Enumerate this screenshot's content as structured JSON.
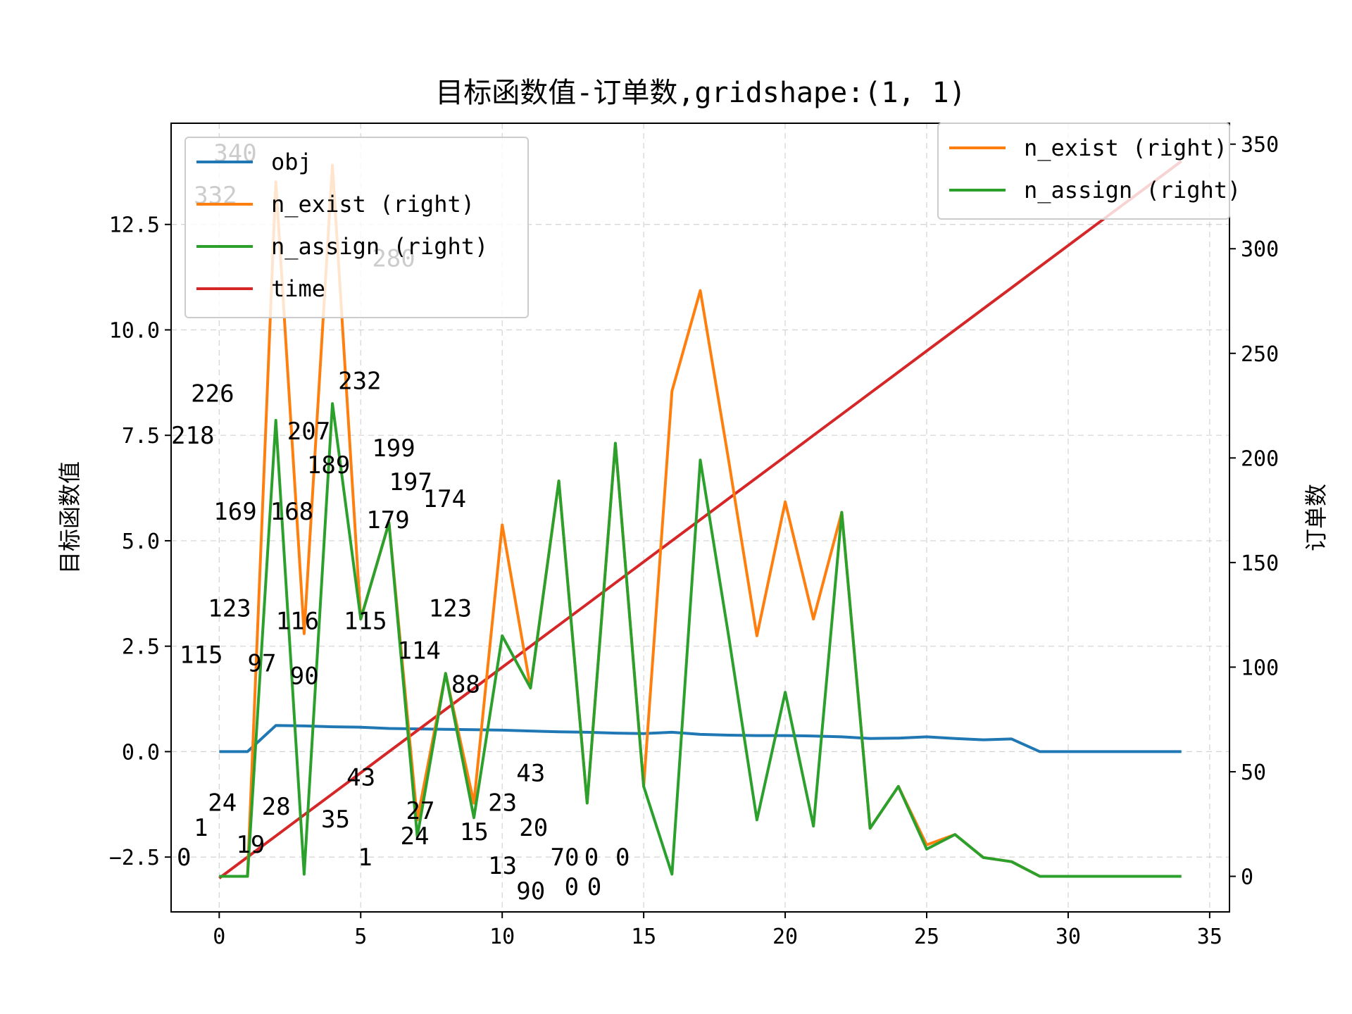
{
  "chart_data": {
    "type": "line",
    "title": "目标函数值-订单数,gridshape:(1, 1)",
    "xlabel": "",
    "ylabel_left": "目标函数值",
    "ylabel_right": "订单数",
    "xlim": [
      -1.7,
      35.7
    ],
    "ylim_left": [
      -3.8,
      14.9
    ],
    "ylim_right": [
      -17,
      360
    ],
    "xticks": [
      0,
      5,
      10,
      15,
      20,
      25,
      30,
      35
    ],
    "yticks_left": [
      -2.5,
      0.0,
      2.5,
      5.0,
      7.5,
      10.0,
      12.5
    ],
    "ytick_labels_left": [
      "−2.5",
      "0.0",
      "2.5",
      "5.0",
      "7.5",
      "10.0",
      "12.5"
    ],
    "yticks_right": [
      0,
      50,
      100,
      150,
      200,
      250,
      300,
      350
    ],
    "grid": true,
    "legend_left_placement": "upper-left",
    "legend_right_placement": "upper-right",
    "legend_left": [
      "obj",
      "n_exist (right)",
      "n_assign (right)",
      "time"
    ],
    "legend_right": [
      "n_exist (right)",
      "n_assign (right)"
    ],
    "colors": {
      "obj": "#1f77b4",
      "n_exist": "#ff7f0e",
      "n_assign": "#2ca02c",
      "time": "#d62728"
    },
    "x": [
      0,
      1,
      2,
      3,
      4,
      5,
      6,
      7,
      8,
      9,
      10,
      11,
      12,
      13,
      14,
      15,
      16,
      17,
      18,
      19,
      20,
      21,
      22,
      23,
      24,
      25,
      26,
      27,
      28,
      29,
      30,
      31,
      32,
      33,
      34
    ],
    "series": [
      {
        "name": "obj",
        "axis": "left",
        "values": [
          0.0,
          0.0,
          0.62,
          0.61,
          0.59,
          0.58,
          0.55,
          0.54,
          0.53,
          0.52,
          0.51,
          0.49,
          0.47,
          0.46,
          0.44,
          0.43,
          0.46,
          0.41,
          0.39,
          0.38,
          0.38,
          0.37,
          0.35,
          0.31,
          0.32,
          0.35,
          0.31,
          0.28,
          0.3,
          0.0,
          0.0,
          0.0,
          0.0,
          0.0,
          0.0
        ]
      },
      {
        "name": "n_exist (right)",
        "axis": "right",
        "values": [
          0,
          0,
          332,
          116,
          340,
          123,
          169,
          27,
          97,
          35,
          168,
          90,
          189,
          35,
          207,
          43,
          232,
          280,
          199,
          115,
          179,
          123,
          174,
          23,
          43,
          15,
          20,
          9,
          7,
          0,
          0,
          0,
          0,
          0,
          0
        ]
      },
      {
        "name": "n_assign (right)",
        "axis": "right",
        "values": [
          0,
          0,
          218,
          1,
          226,
          123,
          169,
          19,
          97,
          28,
          115,
          90,
          189,
          35,
          207,
          43,
          1,
          199,
          115,
          27,
          88,
          24,
          174,
          23,
          43,
          13,
          20,
          9,
          7,
          0,
          0,
          0,
          0,
          0,
          0
        ]
      },
      {
        "name": "time",
        "axis": "left",
        "values": [
          -3.0,
          -2.5,
          -2.0,
          -1.5,
          -1.0,
          -0.5,
          0.0,
          0.5,
          1.0,
          1.5,
          2.0,
          2.5,
          3.0,
          3.5,
          4.0,
          4.5,
          5.0,
          5.5,
          6.0,
          6.5,
          7.0,
          7.5,
          8.0,
          8.5,
          9.0,
          9.5,
          10.0,
          10.5,
          11.0,
          11.5,
          12.0,
          12.5,
          13.0,
          13.5,
          14.0
        ]
      }
    ],
    "annotations": [
      {
        "text": "340",
        "x": -0.2,
        "y": 14.0
      },
      {
        "text": "332",
        "x": -0.9,
        "y": 13.0
      },
      {
        "text": "280",
        "x": 5.4,
        "y": 11.5
      },
      {
        "text": "226",
        "x": -1.0,
        "y": 8.3
      },
      {
        "text": "232",
        "x": 4.2,
        "y": 8.6
      },
      {
        "text": "218",
        "x": -1.7,
        "y": 7.3
      },
      {
        "text": "207",
        "x": 2.4,
        "y": 7.4
      },
      {
        "text": "199",
        "x": 5.4,
        "y": 7.0
      },
      {
        "text": "189",
        "x": 3.1,
        "y": 6.6
      },
      {
        "text": "197",
        "x": 6.0,
        "y": 6.2
      },
      {
        "text": "174",
        "x": 7.2,
        "y": 5.8
      },
      {
        "text": "169",
        "x": -0.2,
        "y": 5.5
      },
      {
        "text": "168",
        "x": 1.8,
        "y": 5.5
      },
      {
        "text": "179",
        "x": 5.2,
        "y": 5.3
      },
      {
        "text": "123",
        "x": -0.4,
        "y": 3.2
      },
      {
        "text": "116",
        "x": 2.0,
        "y": 2.9
      },
      {
        "text": "115",
        "x": 4.4,
        "y": 2.9
      },
      {
        "text": "123",
        "x": 7.4,
        "y": 3.2
      },
      {
        "text": "115",
        "x": -1.4,
        "y": 2.1
      },
      {
        "text": "97",
        "x": 1.0,
        "y": 1.9
      },
      {
        "text": "114",
        "x": 6.3,
        "y": 2.2
      },
      {
        "text": "90",
        "x": 2.5,
        "y": 1.6
      },
      {
        "text": "88",
        "x": 8.2,
        "y": 1.4
      },
      {
        "text": "43",
        "x": 4.5,
        "y": -0.8
      },
      {
        "text": "43",
        "x": 10.5,
        "y": -0.7
      },
      {
        "text": "24",
        "x": -0.4,
        "y": -1.4
      },
      {
        "text": "28",
        "x": 1.5,
        "y": -1.5
      },
      {
        "text": "27",
        "x": 6.6,
        "y": -1.6
      },
      {
        "text": "23",
        "x": 9.5,
        "y": -1.4
      },
      {
        "text": "35",
        "x": 3.6,
        "y": -1.8
      },
      {
        "text": "1",
        "x": -0.9,
        "y": -2.0
      },
      {
        "text": "20",
        "x": 10.6,
        "y": -2.0
      },
      {
        "text": "24",
        "x": 6.4,
        "y": -2.2
      },
      {
        "text": "15",
        "x": 8.5,
        "y": -2.1
      },
      {
        "text": "19",
        "x": 0.6,
        "y": -2.4
      },
      {
        "text": "0",
        "x": -1.5,
        "y": -2.7
      },
      {
        "text": "1",
        "x": 4.9,
        "y": -2.7
      },
      {
        "text": "70",
        "x": 11.7,
        "y": -2.7
      },
      {
        "text": "0",
        "x": 12.9,
        "y": -2.7
      },
      {
        "text": "0",
        "x": 14.0,
        "y": -2.7
      },
      {
        "text": "13",
        "x": 9.5,
        "y": -2.9
      },
      {
        "text": "90",
        "x": 10.5,
        "y": -3.5
      },
      {
        "text": "0",
        "x": 12.2,
        "y": -3.4
      },
      {
        "text": "0",
        "x": 13.0,
        "y": -3.4
      }
    ]
  }
}
